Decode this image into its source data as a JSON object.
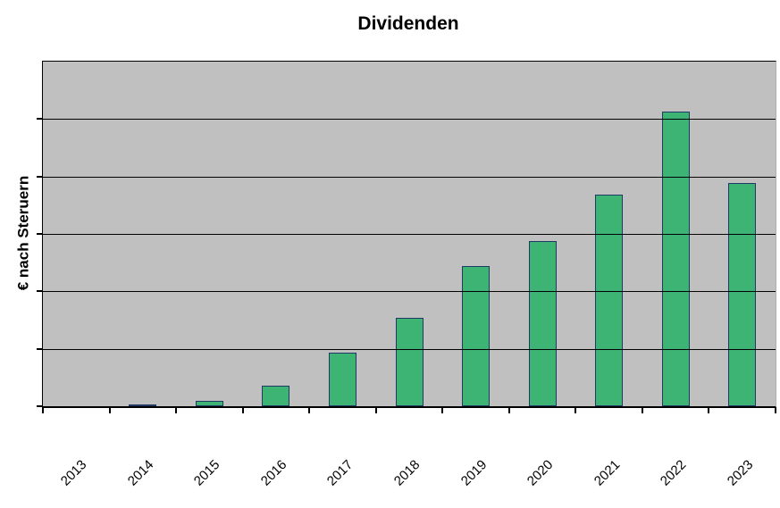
{
  "chart_data": {
    "type": "bar",
    "title": "Dividenden",
    "xlabel": "",
    "ylabel": "€ nach Steruern",
    "categories": [
      "2013",
      "2014",
      "2015",
      "2016",
      "2017",
      "2018",
      "2019",
      "2020",
      "2021",
      "2022",
      "2023"
    ],
    "values": [
      0,
      0.03,
      0.1,
      0.36,
      0.93,
      1.54,
      2.44,
      2.88,
      3.68,
      5.13,
      3.89
    ],
    "value_unit": "gridline divisions (y-axis shows tick marks but no numeric labels)",
    "ylim": [
      0,
      6
    ],
    "grid_divisions": 6,
    "grid": "horizontal gridlines drawn over bars",
    "legend": "none",
    "y_tick_labels_visible": false,
    "colors": {
      "bar_fill": "#3db473",
      "bar_border": "#1f3864",
      "plot_background": "#c0c0c0",
      "gridline": "#000000",
      "text": "#000000",
      "page_background": "#ffffff"
    }
  }
}
